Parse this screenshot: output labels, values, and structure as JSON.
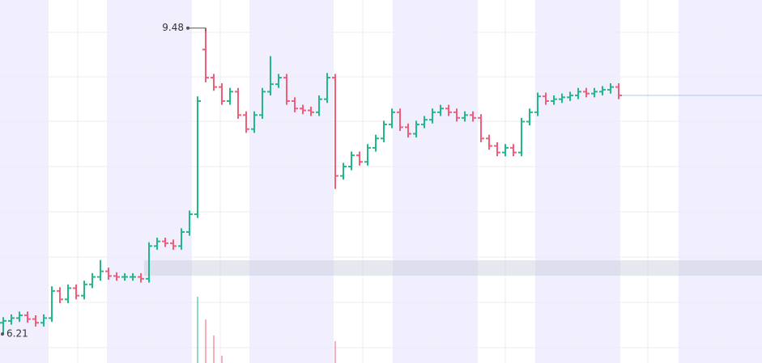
{
  "chart_data": {
    "type": "ohlc",
    "open": [
      6.33,
      6.35,
      6.38,
      6.41,
      6.37,
      6.33,
      6.38,
      6.67,
      6.58,
      6.7,
      6.62,
      6.74,
      6.82,
      6.88,
      6.83,
      6.82,
      6.82,
      6.82,
      6.8,
      7.15,
      7.2,
      7.18,
      7.15,
      7.3,
      7.49,
      9.25,
      8.95,
      8.85,
      8.7,
      8.8,
      8.55,
      8.4,
      8.55,
      8.8,
      8.88,
      8.95,
      8.7,
      8.62,
      8.6,
      8.58,
      8.72,
      8.95,
      7.9,
      8.0,
      8.12,
      8.05,
      8.2,
      8.3,
      8.45,
      8.58,
      8.42,
      8.35,
      8.45,
      8.5,
      8.58,
      8.62,
      8.58,
      8.52,
      8.55,
      8.52,
      8.3,
      8.22,
      8.15,
      8.2,
      8.15,
      8.48,
      8.58,
      8.75,
      8.7,
      8.72,
      8.74,
      8.76,
      8.8,
      8.78,
      8.8,
      8.82,
      8.85
    ],
    "high": [
      6.39,
      6.42,
      6.45,
      6.45,
      6.41,
      6.42,
      6.72,
      6.71,
      6.74,
      6.74,
      6.78,
      6.86,
      7.0,
      6.92,
      6.87,
      6.86,
      6.86,
      6.86,
      7.19,
      7.24,
      7.24,
      7.22,
      7.34,
      7.53,
      8.75,
      9.48,
      8.99,
      8.89,
      8.84,
      8.84,
      8.59,
      8.59,
      8.84,
      9.18,
      8.99,
      8.99,
      8.74,
      8.66,
      8.64,
      8.76,
      9.0,
      8.99,
      8.04,
      8.16,
      8.16,
      8.24,
      8.34,
      8.49,
      8.62,
      8.62,
      8.46,
      8.49,
      8.54,
      8.62,
      8.66,
      8.66,
      8.62,
      8.59,
      8.59,
      8.56,
      8.34,
      8.26,
      8.24,
      8.24,
      8.52,
      8.62,
      8.79,
      8.79,
      8.76,
      8.78,
      8.8,
      8.84,
      8.84,
      8.84,
      8.86,
      8.89,
      8.89
    ],
    "low": [
      6.21,
      6.31,
      6.34,
      6.33,
      6.29,
      6.29,
      6.34,
      6.54,
      6.54,
      6.58,
      6.58,
      6.7,
      6.78,
      6.79,
      6.78,
      6.78,
      6.78,
      6.76,
      6.76,
      7.11,
      7.14,
      7.11,
      7.11,
      7.26,
      7.45,
      8.9,
      8.81,
      8.66,
      8.66,
      8.51,
      8.36,
      8.36,
      8.51,
      8.76,
      8.84,
      8.66,
      8.58,
      8.56,
      8.54,
      8.54,
      8.68,
      7.76,
      7.86,
      7.96,
      8.01,
      8.01,
      8.16,
      8.26,
      8.41,
      8.38,
      8.31,
      8.31,
      8.41,
      8.46,
      8.54,
      8.54,
      8.48,
      8.48,
      8.48,
      8.26,
      8.18,
      8.11,
      8.11,
      8.11,
      8.11,
      8.44,
      8.54,
      8.66,
      8.66,
      8.68,
      8.7,
      8.72,
      8.74,
      8.74,
      8.76,
      8.78,
      8.72
    ],
    "close": [
      6.35,
      6.38,
      6.41,
      6.37,
      6.33,
      6.38,
      6.67,
      6.58,
      6.7,
      6.62,
      6.74,
      6.82,
      6.88,
      6.83,
      6.82,
      6.82,
      6.82,
      6.8,
      7.15,
      7.2,
      7.18,
      7.15,
      7.3,
      7.49,
      8.7,
      8.95,
      8.85,
      8.7,
      8.8,
      8.55,
      8.4,
      8.55,
      8.8,
      8.88,
      8.95,
      8.7,
      8.62,
      8.6,
      8.58,
      8.72,
      8.95,
      7.9,
      8.0,
      8.12,
      8.05,
      8.2,
      8.3,
      8.45,
      8.58,
      8.42,
      8.35,
      8.45,
      8.5,
      8.58,
      8.62,
      8.58,
      8.52,
      8.55,
      8.52,
      8.3,
      8.22,
      8.15,
      8.2,
      8.15,
      8.48,
      8.58,
      8.75,
      8.7,
      8.72,
      8.74,
      8.76,
      8.8,
      8.78,
      8.8,
      8.82,
      8.85,
      8.76
    ],
    "volume": [
      0,
      0,
      0,
      0,
      0,
      0,
      0,
      0,
      0,
      0,
      0,
      0,
      0,
      0,
      0,
      0,
      0,
      0,
      0,
      0,
      0,
      0,
      0,
      0,
      82,
      54,
      34,
      9,
      0,
      0,
      0,
      0,
      0,
      0,
      0,
      0,
      0,
      0,
      0,
      0,
      0,
      27,
      0,
      0,
      0,
      0,
      0,
      0,
      0,
      0,
      0,
      0,
      0,
      0,
      0,
      0,
      0,
      0,
      0,
      0,
      0,
      0,
      0,
      0,
      0,
      0,
      0,
      0,
      0,
      0,
      0,
      0,
      0,
      0,
      0,
      0,
      0
    ],
    "ylim": [
      5.9,
      9.78
    ],
    "volume_lim": [
      0,
      100
    ],
    "up_color": "#22b88a",
    "down_color": "#ef5f7a",
    "last_price_line_color": "#a9c9f2"
  }
}
